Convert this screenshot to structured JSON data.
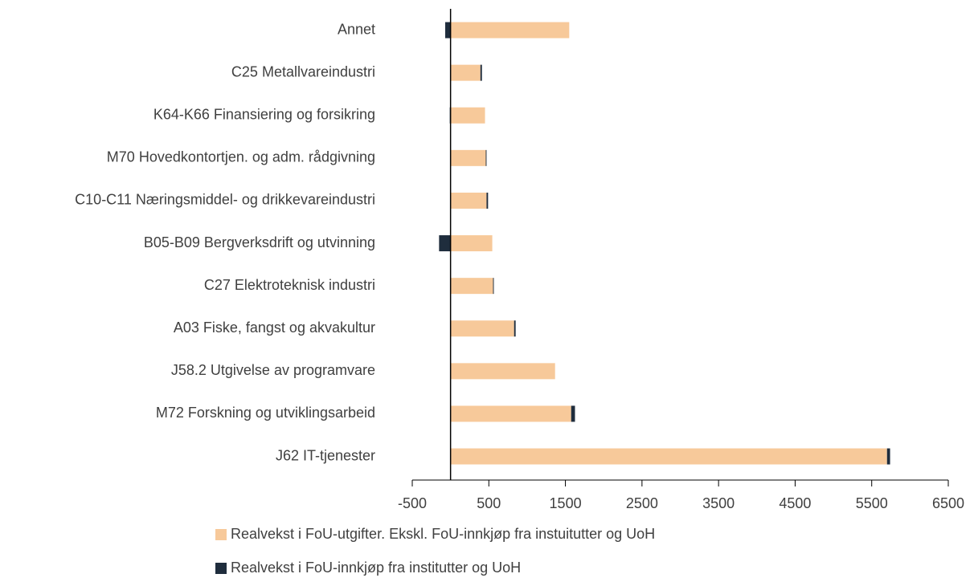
{
  "chart_data": {
    "type": "bar",
    "orientation": "horizontal",
    "stacked": true,
    "categories": [
      "Annet",
      "C25 Metallvareindustri",
      "K64-K66 Finansiering og forsikring",
      "M70 Hovedkontortjen. og adm. rådgivning",
      "C10-C11 Næringsmiddel- og drikkevareindustri",
      "B05-B09 Bergverksdrift og utvinning",
      "C27 Elektroteknisk industri",
      "A03 Fiske, fangst og akvakultur",
      "J58.2 Utgivelse av programvare",
      "M72 Forskning og utviklingsarbeid",
      "J62 IT-tjenester"
    ],
    "series": [
      {
        "name": "Realvekst i FoU-utgifter. Ekskl. FoU-innkjøp fra instuitutter og UoH",
        "color": "#f7c99a",
        "values": [
          1550,
          390,
          450,
          460,
          470,
          545,
          555,
          830,
          1365,
          1575,
          5700
        ]
      },
      {
        "name": "Realvekst i FoU-innkjøp fra institutter og UoH",
        "color": "#1f2d3d",
        "values": [
          -70,
          20,
          -10,
          10,
          20,
          -150,
          10,
          20,
          0,
          50,
          40
        ]
      }
    ],
    "xlim": [
      -500,
      6500
    ],
    "xticks": [
      -500,
      500,
      1500,
      2500,
      3500,
      4500,
      5500,
      6500
    ],
    "legend": "bottom"
  }
}
